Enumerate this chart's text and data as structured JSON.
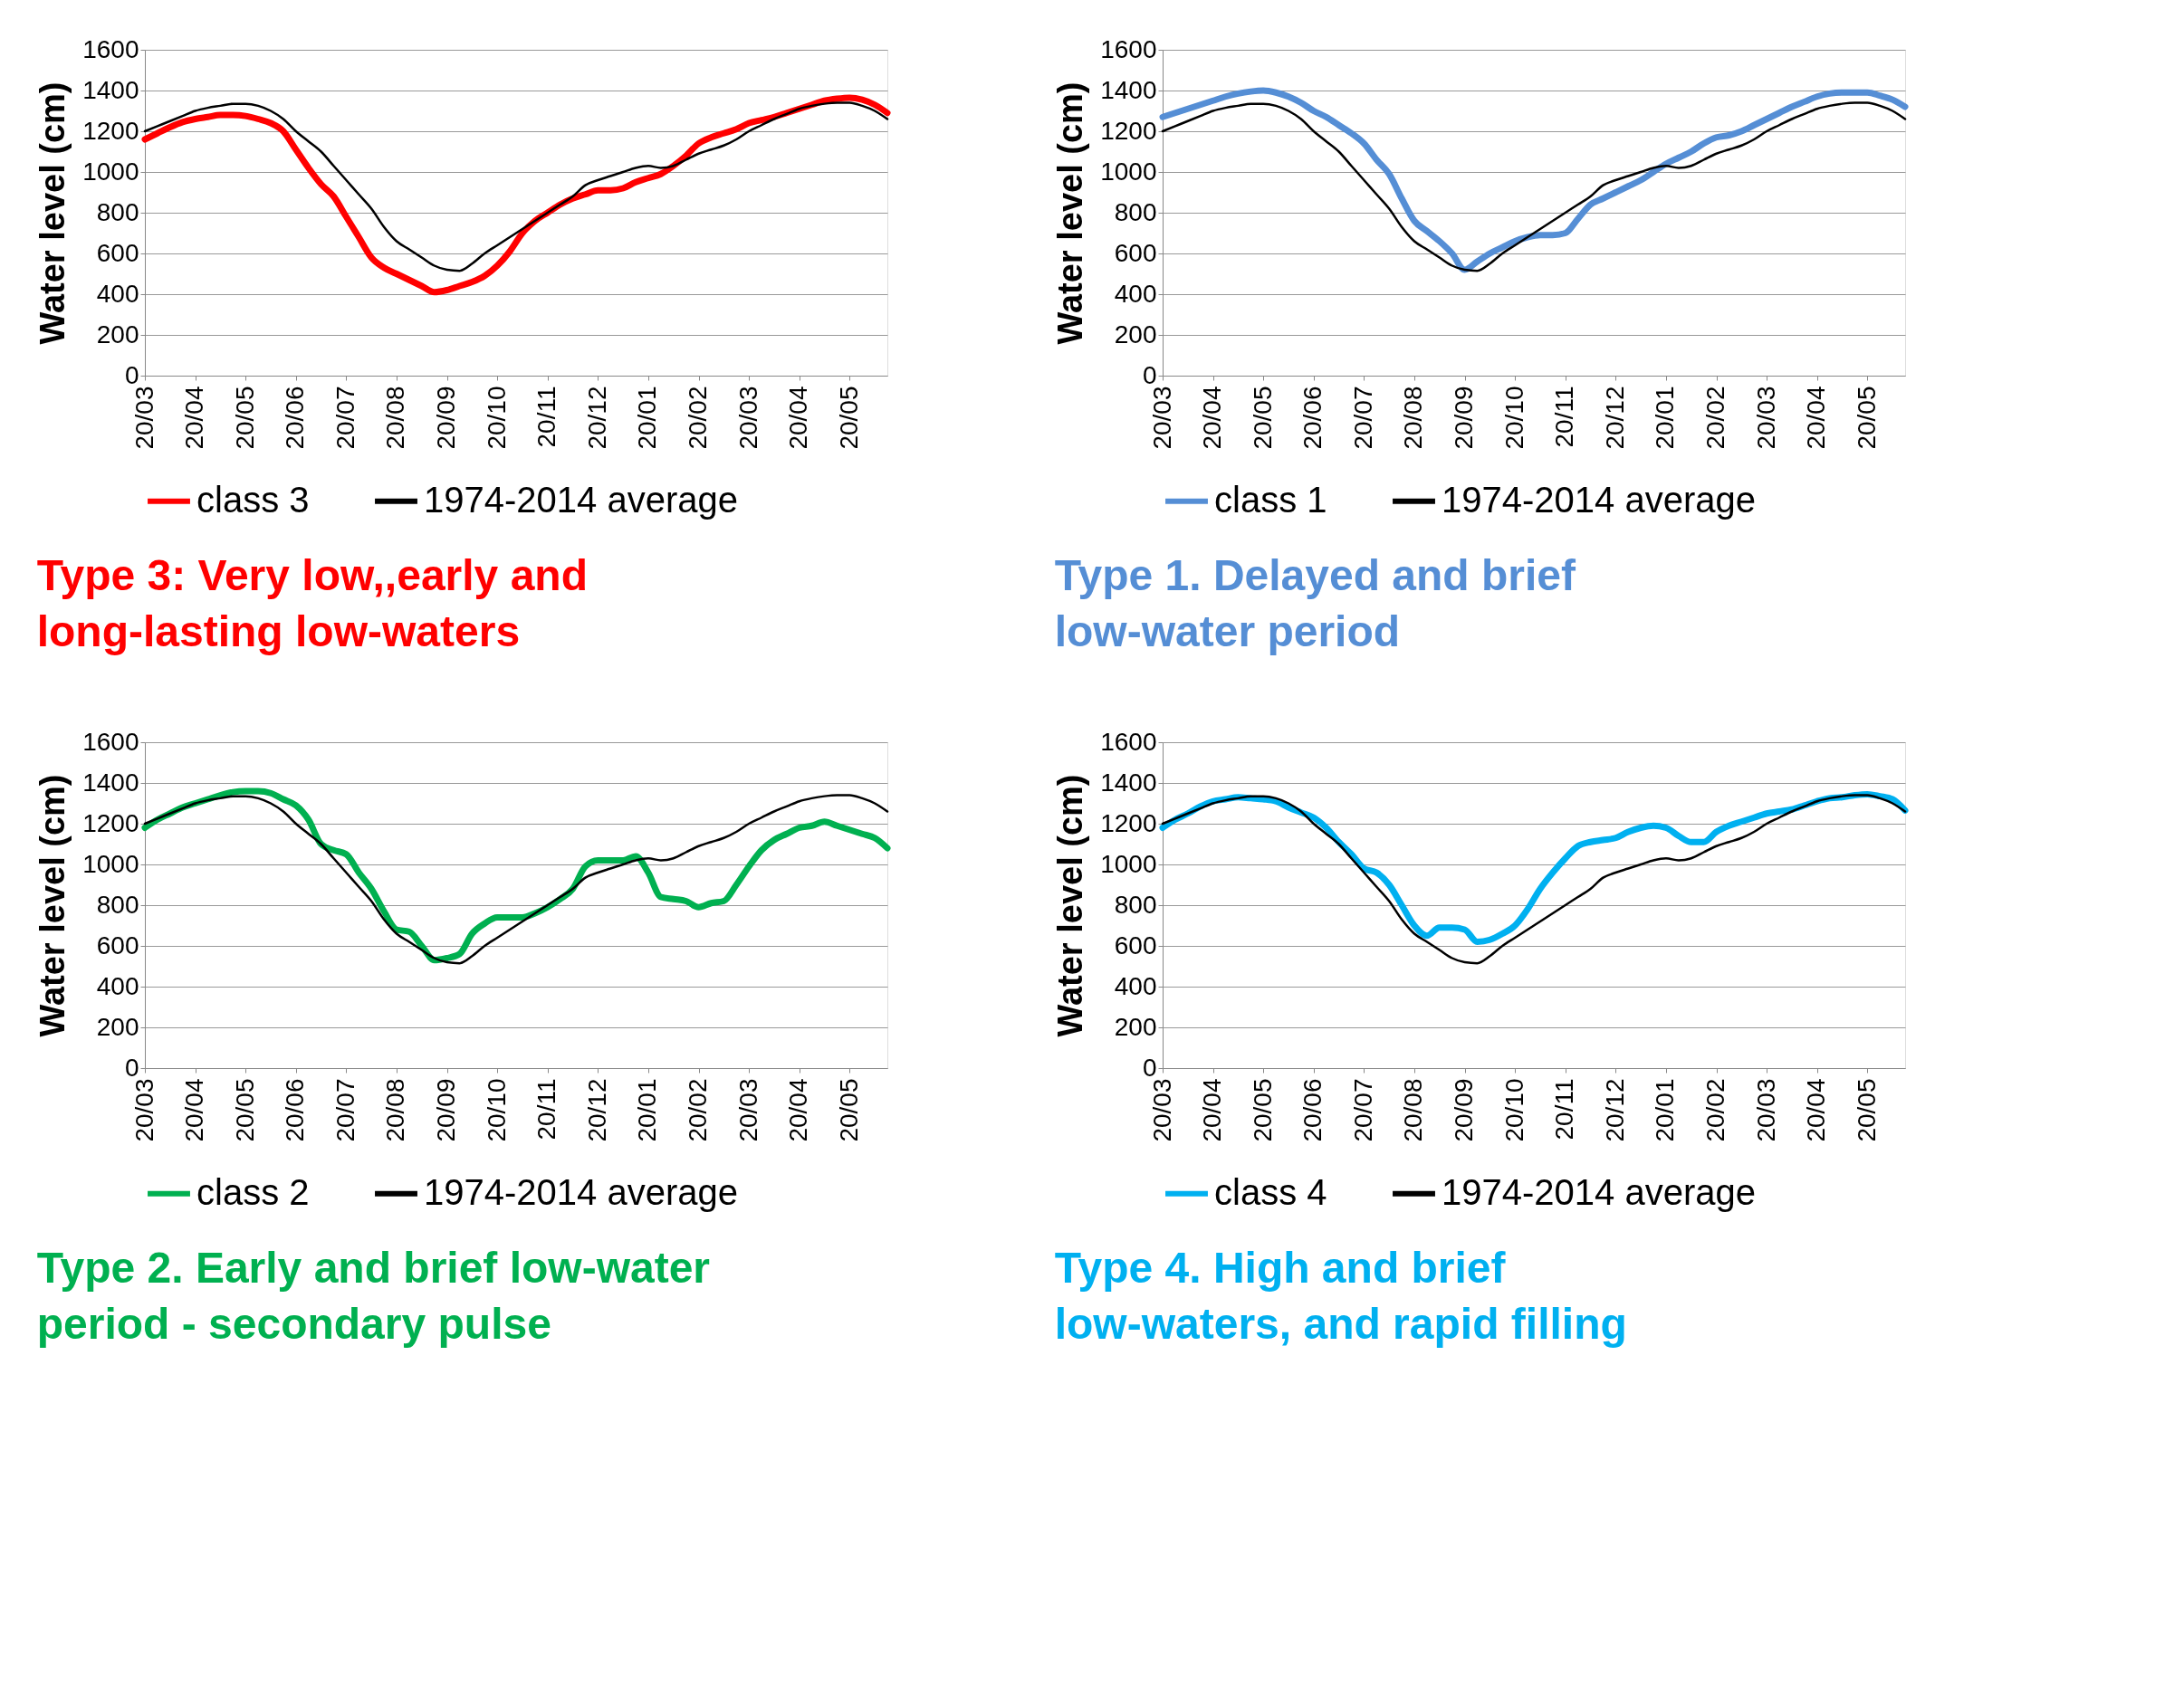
{
  "chart_data": [
    {
      "type": "line",
      "title": "Type 3: Very low,,early and  long-lasting  low-waters",
      "ylabel": "Water level (cm)",
      "categories": [
        "20/03",
        null,
        null,
        null,
        "20/04",
        null,
        null,
        null,
        "20/05",
        null,
        null,
        null,
        "20/06",
        null,
        null,
        null,
        "20/07",
        null,
        null,
        null,
        "20/08",
        null,
        null,
        null,
        "20/09",
        null,
        null,
        null,
        "20/10",
        null,
        null,
        null,
        "20/11",
        null,
        null,
        null,
        "20/12",
        null,
        null,
        null,
        "20/01",
        null,
        null,
        null,
        "20/02",
        null,
        null,
        null,
        "20/03",
        null,
        null,
        null,
        "20/04",
        null,
        null,
        null,
        "20/05",
        null,
        null,
        null
      ],
      "ylim": [
        0,
        1600
      ],
      "yticks": [
        0,
        200,
        400,
        600,
        800,
        1000,
        1200,
        1400,
        1600
      ],
      "grid": "y",
      "legend": "bottom",
      "marker": "none",
      "line_style": "solid",
      "series": [
        {
          "name": "class 3",
          "color": "#ff0000",
          "values": [
            1160,
            1190,
            1220,
            1245,
            1260,
            1270,
            1280,
            1280,
            1275,
            1260,
            1240,
            1200,
            1110,
            1020,
            940,
            880,
            780,
            680,
            580,
            530,
            500,
            470,
            440,
            410,
            420,
            440,
            460,
            490,
            540,
            610,
            700,
            760,
            800,
            840,
            870,
            890,
            910,
            910,
            920,
            950,
            970,
            990,
            1030,
            1080,
            1140,
            1170,
            1190,
            1210,
            1240,
            1255,
            1270,
            1290,
            1310,
            1330,
            1350,
            1360,
            1365,
            1355,
            1330,
            1290
          ]
        },
        {
          "name": "1974-2014 average",
          "color": "#000000",
          "values": [
            1200,
            1225,
            1250,
            1275,
            1300,
            1315,
            1325,
            1335,
            1335,
            1325,
            1300,
            1260,
            1200,
            1150,
            1100,
            1030,
            960,
            890,
            820,
            730,
            660,
            620,
            580,
            540,
            520,
            515,
            550,
            600,
            640,
            680,
            720,
            760,
            800,
            840,
            880,
            935,
            960,
            980,
            1000,
            1020,
            1030,
            1020,
            1030,
            1060,
            1090,
            1110,
            1130,
            1160,
            1200,
            1230,
            1260,
            1285,
            1310,
            1325,
            1335,
            1340,
            1340,
            1325,
            1300,
            1260
          ]
        }
      ]
    },
    {
      "type": "line",
      "title": "Type  1. Delayed and brief low-water period",
      "ylabel": "Water level (cm)",
      "categories": [
        "20/03",
        null,
        null,
        null,
        "20/04",
        null,
        null,
        null,
        "20/05",
        null,
        null,
        null,
        "20/06",
        null,
        null,
        null,
        "20/07",
        null,
        null,
        null,
        "20/08",
        null,
        null,
        null,
        "20/09",
        null,
        null,
        null,
        "20/10",
        null,
        null,
        null,
        "20/11",
        null,
        null,
        null,
        "20/12",
        null,
        null,
        null,
        "20/01",
        null,
        null,
        null,
        "20/02",
        null,
        null,
        null,
        "20/03",
        null,
        null,
        null,
        "20/04",
        null,
        null,
        null,
        "20/05",
        null,
        null,
        null
      ],
      "ylim": [
        0,
        1600
      ],
      "yticks": [
        0,
        200,
        400,
        600,
        800,
        1000,
        1200,
        1400,
        1600
      ],
      "grid": "y",
      "legend": "bottom",
      "marker": "none",
      "line_style": "solid",
      "series": [
        {
          "name": "class 1",
          "color": "#558ed5",
          "values": [
            1270,
            1290,
            1310,
            1330,
            1350,
            1370,
            1385,
            1395,
            1400,
            1390,
            1370,
            1340,
            1300,
            1270,
            1230,
            1190,
            1140,
            1060,
            990,
            870,
            760,
            710,
            660,
            600,
            520,
            560,
            600,
            630,
            660,
            680,
            690,
            690,
            700,
            770,
            840,
            870,
            900,
            930,
            960,
            1000,
            1040,
            1070,
            1100,
            1140,
            1170,
            1180,
            1200,
            1230,
            1260,
            1290,
            1320,
            1345,
            1370,
            1385,
            1390,
            1390,
            1390,
            1375,
            1355,
            1320
          ]
        },
        {
          "name": "1974-2014 average",
          "color": "#000000",
          "values": [
            1200,
            1225,
            1250,
            1275,
            1300,
            1315,
            1325,
            1335,
            1335,
            1325,
            1300,
            1260,
            1200,
            1150,
            1100,
            1030,
            960,
            890,
            820,
            730,
            660,
            620,
            580,
            540,
            520,
            515,
            550,
            600,
            640,
            680,
            720,
            760,
            800,
            840,
            880,
            935,
            960,
            980,
            1000,
            1020,
            1030,
            1020,
            1030,
            1060,
            1090,
            1110,
            1130,
            1160,
            1200,
            1230,
            1260,
            1285,
            1310,
            1325,
            1335,
            1340,
            1340,
            1325,
            1300,
            1260
          ]
        }
      ]
    },
    {
      "type": "line",
      "title": "Type  2. Early and brief low-water period - secondary  pulse",
      "ylabel": "Water level (cm)",
      "categories": [
        "20/03",
        null,
        null,
        null,
        "20/04",
        null,
        null,
        null,
        "20/05",
        null,
        null,
        null,
        "20/06",
        null,
        null,
        null,
        "20/07",
        null,
        null,
        null,
        "20/08",
        null,
        null,
        null,
        "20/09",
        null,
        null,
        null,
        "20/10",
        null,
        null,
        null,
        "20/11",
        null,
        null,
        null,
        "20/12",
        null,
        null,
        null,
        "20/01",
        null,
        null,
        null,
        "20/02",
        null,
        null,
        null,
        "20/03",
        null,
        null,
        null,
        "20/04",
        null,
        null,
        null,
        "20/05",
        null,
        null,
        null
      ],
      "ylim": [
        0,
        1600
      ],
      "yticks": [
        0,
        200,
        400,
        600,
        800,
        1000,
        1200,
        1400,
        1600
      ],
      "grid": "y",
      "legend": "bottom",
      "marker": "none",
      "line_style": "solid",
      "series": [
        {
          "name": "class 2",
          "color": "#00b050",
          "values": [
            1180,
            1220,
            1250,
            1280,
            1300,
            1320,
            1340,
            1355,
            1360,
            1360,
            1350,
            1320,
            1290,
            1220,
            1100,
            1070,
            1050,
            960,
            880,
            770,
            680,
            670,
            600,
            530,
            540,
            560,
            660,
            710,
            740,
            740,
            740,
            760,
            790,
            830,
            880,
            990,
            1020,
            1020,
            1020,
            1040,
            960,
            840,
            830,
            820,
            790,
            810,
            820,
            900,
            990,
            1070,
            1120,
            1150,
            1180,
            1190,
            1210,
            1190,
            1170,
            1150,
            1130,
            1080
          ]
        },
        {
          "name": "1974-2014 average",
          "color": "#000000",
          "values": [
            1200,
            1225,
            1250,
            1275,
            1300,
            1315,
            1325,
            1335,
            1335,
            1325,
            1300,
            1260,
            1200,
            1150,
            1100,
            1030,
            960,
            890,
            820,
            730,
            660,
            620,
            580,
            540,
            520,
            515,
            550,
            600,
            640,
            680,
            720,
            760,
            800,
            840,
            880,
            935,
            960,
            980,
            1000,
            1020,
            1030,
            1020,
            1030,
            1060,
            1090,
            1110,
            1130,
            1160,
            1200,
            1230,
            1260,
            1285,
            1310,
            1325,
            1335,
            1340,
            1340,
            1325,
            1300,
            1260
          ]
        }
      ]
    },
    {
      "type": "line",
      "title": "Type 4. High and  brief low-waters, and rapid filling",
      "ylabel": "Water level  (cm)",
      "categories": [
        "20/03",
        null,
        null,
        null,
        "20/04",
        null,
        null,
        null,
        "20/05",
        null,
        null,
        null,
        "20/06",
        null,
        null,
        null,
        "20/07",
        null,
        null,
        null,
        "20/08",
        null,
        null,
        null,
        "20/09",
        null,
        null,
        null,
        "20/10",
        null,
        null,
        null,
        "20/11",
        null,
        null,
        null,
        "20/12",
        null,
        null,
        null,
        "20/01",
        null,
        null,
        null,
        "20/02",
        null,
        null,
        null,
        "20/03",
        null,
        null,
        null,
        "20/04",
        null,
        null,
        null,
        "20/05",
        null,
        null,
        null
      ],
      "ylim": [
        0,
        1600
      ],
      "yticks": [
        0,
        200,
        400,
        600,
        800,
        1000,
        1200,
        1400,
        1600
      ],
      "grid": "y",
      "legend": "bottom",
      "marker": "none",
      "line_style": "solid",
      "series": [
        {
          "name": "class 4",
          "color": "#00b0f0",
          "values": [
            1180,
            1220,
            1250,
            1285,
            1310,
            1320,
            1330,
            1325,
            1320,
            1310,
            1280,
            1255,
            1230,
            1180,
            1110,
            1050,
            980,
            960,
            900,
            800,
            700,
            650,
            690,
            690,
            680,
            620,
            630,
            660,
            700,
            780,
            880,
            960,
            1030,
            1090,
            1110,
            1120,
            1130,
            1160,
            1180,
            1190,
            1180,
            1140,
            1110,
            1110,
            1160,
            1190,
            1210,
            1230,
            1250,
            1260,
            1270,
            1290,
            1310,
            1325,
            1330,
            1340,
            1345,
            1335,
            1320,
            1265
          ]
        },
        {
          "name": "1974-2014 average",
          "color": "#000000",
          "values": [
            1200,
            1225,
            1250,
            1275,
            1300,
            1315,
            1325,
            1335,
            1335,
            1325,
            1300,
            1260,
            1200,
            1150,
            1100,
            1030,
            960,
            890,
            820,
            730,
            660,
            620,
            580,
            540,
            520,
            515,
            550,
            600,
            640,
            680,
            720,
            760,
            800,
            840,
            880,
            935,
            960,
            980,
            1000,
            1020,
            1030,
            1020,
            1030,
            1060,
            1090,
            1110,
            1130,
            1160,
            1200,
            1230,
            1260,
            1285,
            1310,
            1325,
            1335,
            1340,
            1340,
            1325,
            1300,
            1260
          ]
        }
      ]
    }
  ]
}
